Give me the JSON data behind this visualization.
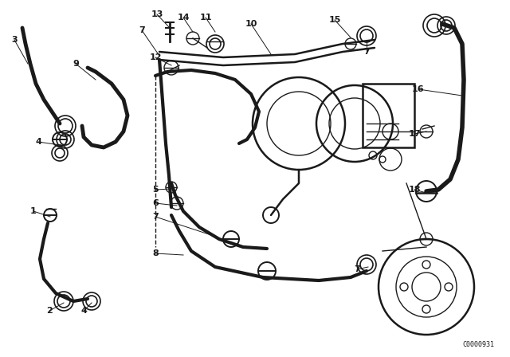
{
  "bg_color": "#ffffff",
  "fig_width": 6.4,
  "fig_height": 4.48,
  "diagram_code": "C0000931",
  "line_color": "#1a1a1a",
  "label_fontsize": 8.0,
  "code_fontsize": 6.0
}
